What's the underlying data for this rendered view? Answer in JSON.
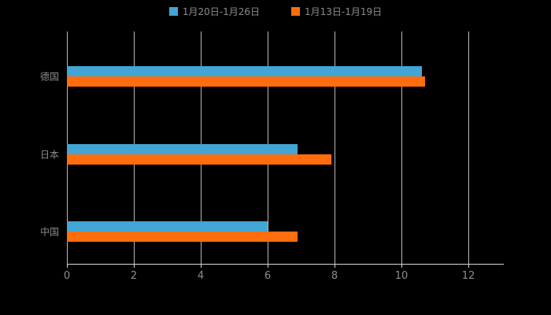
{
  "chart_data": {
    "type": "bar",
    "orientation": "horizontal",
    "title": "",
    "xlabel": "",
    "ylabel": "",
    "categories": [
      "德国",
      "日本",
      "中国"
    ],
    "series": [
      {
        "name": "1月20日-1月26日",
        "color": "#42a5d5",
        "values": [
          10.6,
          6.9,
          6.0
        ]
      },
      {
        "name": "1月13日-1月19日",
        "color": "#ff6d0d",
        "values": [
          10.7,
          7.9,
          6.9
        ]
      }
    ],
    "xlim": [
      0,
      12
    ],
    "xticks": [
      0,
      2,
      4,
      6,
      8,
      10,
      12
    ],
    "grid": "vertical",
    "legend_position": "top",
    "colors": {
      "background": "#000000",
      "grid": "#d9d9d9",
      "axis": "#d9d9d9",
      "text": "#8c8c8c"
    }
  }
}
